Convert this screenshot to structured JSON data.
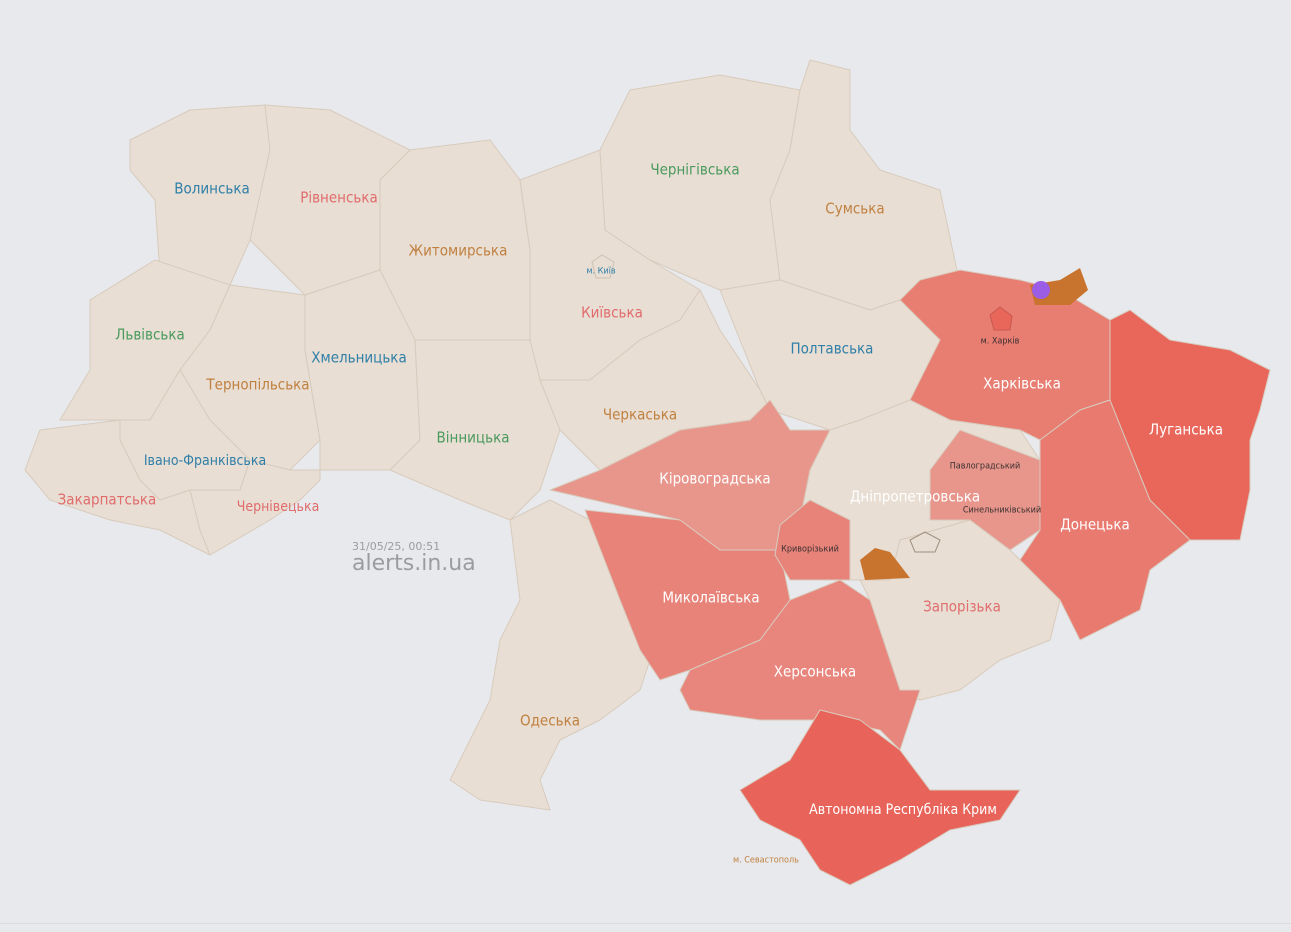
{
  "timestamp": "31/05/25, 00:51",
  "site": "alerts.in.ua",
  "colors": {
    "background": "#e8e9ec",
    "no_alert": "#e8ded3",
    "alert_light": "#e8968c",
    "alert_medium": "#e8837a",
    "alert_strong": "#e8665a",
    "threat_orange": "#c8732e",
    "threat_purple": "#9b5de5"
  },
  "regions": [
    {
      "id": "volyn",
      "name": "Волинська",
      "alert": false
    },
    {
      "id": "rivne",
      "name": "Рівненська",
      "alert": false
    },
    {
      "id": "zhytomyr",
      "name": "Житомирська",
      "alert": false
    },
    {
      "id": "kyivska",
      "name": "Київська",
      "alert": false
    },
    {
      "id": "chernihiv",
      "name": "Чернігівська",
      "alert": false
    },
    {
      "id": "sumy",
      "name": "Сумська",
      "alert": false
    },
    {
      "id": "lviv",
      "name": "Львівська",
      "alert": false
    },
    {
      "id": "ternopil",
      "name": "Тернопільська",
      "alert": false
    },
    {
      "id": "khmelnytskyi",
      "name": "Хмельницька",
      "alert": false
    },
    {
      "id": "ivano_frankivsk",
      "name": "Івано-Франківська",
      "alert": false
    },
    {
      "id": "zakarpattia",
      "name": "Закарпатська",
      "alert": false
    },
    {
      "id": "chernivtsi",
      "name": "Чернівецька",
      "alert": false
    },
    {
      "id": "vinnytsia",
      "name": "Вінницька",
      "alert": false
    },
    {
      "id": "cherkasy",
      "name": "Черкаська",
      "alert": false
    },
    {
      "id": "poltava",
      "name": "Полтавська",
      "alert": false
    },
    {
      "id": "kirovohrad",
      "name": "Кіровоградська",
      "alert": true
    },
    {
      "id": "odesa",
      "name": "Одеська",
      "alert": false
    },
    {
      "id": "mykolaiv",
      "name": "Миколаївська",
      "alert": true
    },
    {
      "id": "kherson",
      "name": "Херсонська",
      "alert": true
    },
    {
      "id": "dnipro",
      "name": "Дніпропетровська",
      "alert": "partial"
    },
    {
      "id": "zaporizhzhia",
      "name": "Запорізька",
      "alert": false
    },
    {
      "id": "kharkiv",
      "name": "Харківська",
      "alert": true
    },
    {
      "id": "donetsk",
      "name": "Донецька",
      "alert": true
    },
    {
      "id": "luhansk",
      "name": "Луганська",
      "alert": true
    },
    {
      "id": "crimea",
      "name": "Автономна Республіка Крим",
      "alert": true
    }
  ],
  "cities": {
    "kyiv": "м. Київ",
    "kharkiv": "м. Харків",
    "sevastopol": "м. Севастополь"
  },
  "districts": {
    "kryvyi_rih": "Криворізький",
    "pavlohrad": "Павлоградський",
    "synelnykove": "Синельниківський"
  },
  "threat_icons": [
    "drone-threat-icon",
    "artillery-threat-icon"
  ]
}
